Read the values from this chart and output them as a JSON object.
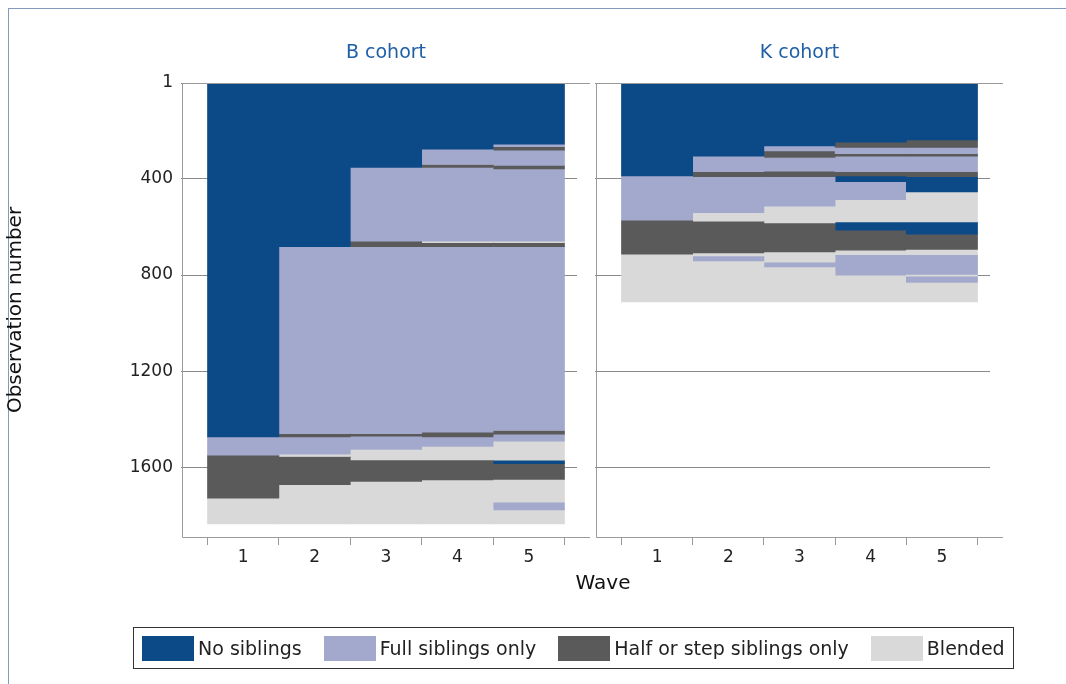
{
  "chart_data": [
    {
      "type": "bar",
      "title": "B cohort",
      "xlabel": "Wave",
      "ylabel": "Observation number",
      "stacked": true,
      "legend": "bottom",
      "grid": "y",
      "x": [
        1,
        2,
        3,
        4,
        5
      ],
      "xlim": [
        0.325,
        5.675
      ],
      "xticks": [
        1,
        2,
        3,
        4,
        5
      ],
      "ylim": [
        1890,
        1
      ],
      "yticks": [
        1,
        400,
        800,
        1200,
        1600
      ],
      "series": [
        {
          "values": [
            1474,
            682,
            352,
            276,
            255
          ],
          "colors": [
            "#0c4a87",
            "#0c4a87",
            "#0c4a87",
            "#0c4a87",
            "#0c4a87"
          ]
        },
        {
          "values": [
            76,
            778,
            307,
            64,
            11
          ],
          "colors": [
            "#a3a9cc",
            "#a3a9cc",
            "#a3a9cc",
            "#a3a9cc",
            "#a3a9cc"
          ]
        },
        {
          "values": [
            178,
            14,
            23,
            12,
            14
          ],
          "colors": [
            "#5a5a5a",
            "#5a5a5a",
            "#5a5a5a",
            "#5a5a5a",
            "#5a5a5a"
          ]
        },
        {
          "values": [
            108,
            71,
            778,
            307,
            64
          ],
          "colors": [
            "#d9d9d9",
            "#a3a9cc",
            "#a3a9cc",
            "#a3a9cc",
            "#a3a9cc"
          ]
        },
        {
          "values": [
            null,
            10,
            10,
            6,
            14
          ],
          "colors": [
            null,
            "#d9d9d9",
            "#5a5a5a",
            "#d9d9d9",
            "#5a5a5a"
          ]
        },
        {
          "values": [
            null,
            117,
            56,
            17,
            301
          ],
          "colors": [
            null,
            "#5a5a5a",
            "#a3a9cc",
            "#5a5a5a",
            "#a3a9cc"
          ]
        },
        {
          "values": [
            null,
            164,
            43,
            772,
            6
          ],
          "colors": [
            null,
            "#d9d9d9",
            "#d9d9d9",
            "#a3a9cc",
            "#d9d9d9"
          ]
        },
        {
          "values": [
            null,
            null,
            90,
            20,
            17
          ],
          "colors": [
            null,
            null,
            "#5a5a5a",
            "#5a5a5a",
            "#5a5a5a"
          ]
        },
        {
          "values": [
            null,
            null,
            177,
            39,
            765
          ],
          "colors": [
            null,
            null,
            "#d9d9d9",
            "#a3a9cc",
            "#a3a9cc"
          ]
        },
        {
          "values": [
            null,
            null,
            null,
            56,
            15
          ],
          "colors": [
            null,
            null,
            null,
            "#d9d9d9",
            "#5a5a5a"
          ]
        },
        {
          "values": [
            null,
            null,
            null,
            83,
            29
          ],
          "colors": [
            null,
            null,
            null,
            "#5a5a5a",
            "#a3a9cc"
          ]
        },
        {
          "values": [
            null,
            null,
            null,
            184,
            79
          ],
          "colors": [
            null,
            null,
            null,
            "#d9d9d9",
            "#d9d9d9"
          ]
        },
        {
          "values": [
            null,
            null,
            null,
            null,
            15
          ],
          "colors": [
            null,
            null,
            null,
            null,
            "#0c4a87"
          ]
        },
        {
          "values": [
            null,
            null,
            null,
            null,
            65
          ],
          "colors": [
            null,
            null,
            null,
            null,
            "#5a5a5a"
          ]
        },
        {
          "values": [
            null,
            null,
            null,
            null,
            95
          ],
          "colors": [
            null,
            null,
            null,
            null,
            "#d9d9d9"
          ]
        },
        {
          "values": [
            null,
            null,
            null,
            null,
            32
          ],
          "colors": [
            null,
            null,
            null,
            null,
            "#a3a9cc"
          ]
        },
        {
          "values": [
            null,
            null,
            null,
            null,
            59
          ],
          "colors": [
            null,
            null,
            null,
            null,
            "#d9d9d9"
          ]
        },
        {
          "name": "No siblings",
          "color": "#0c4a87",
          "values": [
            null,
            null,
            null,
            null,
            null
          ]
        },
        {
          "name": "Full siblings only",
          "color": "#a3a9cc",
          "values": [
            null,
            null,
            null,
            null,
            null
          ]
        },
        {
          "name": "Half or step siblings only",
          "color": "#5a5a5a",
          "values": [
            null,
            null,
            null,
            null,
            null
          ]
        },
        {
          "name": "Blended",
          "color": "#d9d9d9",
          "values": [
            null,
            null,
            null,
            null,
            null
          ]
        }
      ]
    },
    {
      "type": "bar",
      "title": "K cohort",
      "stacked": true,
      "grid": "y",
      "tick_labels": "x",
      "x": [
        1,
        2,
        3,
        4,
        5
      ],
      "xlim": [
        0.325,
        5.675
      ],
      "xticks": [
        1,
        2,
        3,
        4,
        5
      ],
      "ylim": [
        1890,
        1
      ],
      "yticks": [
        1,
        400,
        800,
        1200,
        1600
      ],
      "series": [
        {
          "values": [
            388,
            305,
            263,
            247,
            238
          ],
          "colors": [
            "#0c4a87",
            "#0c4a87",
            "#0c4a87",
            "#0c4a87",
            "#0c4a87"
          ]
        },
        {
          "values": [
            184,
            65,
            21,
            22,
            31
          ],
          "colors": [
            "#a3a9cc",
            "#a3a9cc",
            "#a3a9cc",
            "#5a5a5a",
            "#5a5a5a"
          ]
        },
        {
          "values": [
            141,
            21,
            27,
            26,
            26
          ],
          "colors": [
            "#5a5a5a",
            "#5a5a5a",
            "#5a5a5a",
            "#a3a9cc",
            "#a3a9cc"
          ]
        },
        {
          "values": [
            199,
            150,
            57,
            10,
            10
          ],
          "colors": [
            "#d9d9d9",
            "#a3a9cc",
            "#a3a9cc",
            "#5a5a5a",
            "#5a5a5a"
          ]
        },
        {
          "values": [
            null,
            35,
            23,
            65,
            65
          ],
          "colors": [
            null,
            "#d9d9d9",
            "#5a5a5a",
            "#a3a9cc",
            "#a3a9cc"
          ]
        },
        {
          "values": [
            null,
            132,
            123,
            18,
            21
          ],
          "colors": [
            null,
            "#5a5a5a",
            "#a3a9cc",
            "#5a5a5a",
            "#5a5a5a"
          ]
        },
        {
          "values": [
            null,
            12,
            69,
            24,
            63
          ],
          "colors": [
            null,
            "#d9d9d9",
            "#d9d9d9",
            "#0c4a87",
            "#0c4a87"
          ]
        },
        {
          "values": [
            null,
            21,
            121,
            74,
            125
          ],
          "colors": [
            null,
            "#a3a9cc",
            "#5a5a5a",
            "#a3a9cc",
            "#d9d9d9"
          ]
        },
        {
          "values": [
            null,
            171,
            43,
            93,
            51
          ],
          "colors": [
            null,
            "#d9d9d9",
            "#d9d9d9",
            "#d9d9d9",
            "#0c4a87"
          ]
        },
        {
          "values": [
            null,
            null,
            19,
            34,
            63
          ],
          "colors": [
            null,
            null,
            "#a3a9cc",
            "#0c4a87",
            "#5a5a5a"
          ]
        },
        {
          "values": [
            null,
            null,
            146,
            84,
            22
          ],
          "colors": [
            null,
            null,
            "#d9d9d9",
            "#5a5a5a",
            "#d9d9d9"
          ]
        },
        {
          "values": [
            null,
            null,
            null,
            18,
            82
          ],
          "colors": [
            null,
            null,
            null,
            "#d9d9d9",
            "#a3a9cc"
          ]
        },
        {
          "values": [
            null,
            null,
            null,
            86,
            8
          ],
          "colors": [
            null,
            null,
            null,
            "#a3a9cc",
            "#d9d9d9"
          ]
        },
        {
          "values": [
            null,
            null,
            null,
            111,
            26
          ],
          "colors": [
            null,
            null,
            null,
            "#d9d9d9",
            "#a3a9cc"
          ]
        },
        {
          "values": [
            null,
            null,
            null,
            null,
            81
          ],
          "colors": [
            null,
            null,
            null,
            null,
            "#d9d9d9"
          ]
        }
      ]
    }
  ]
}
